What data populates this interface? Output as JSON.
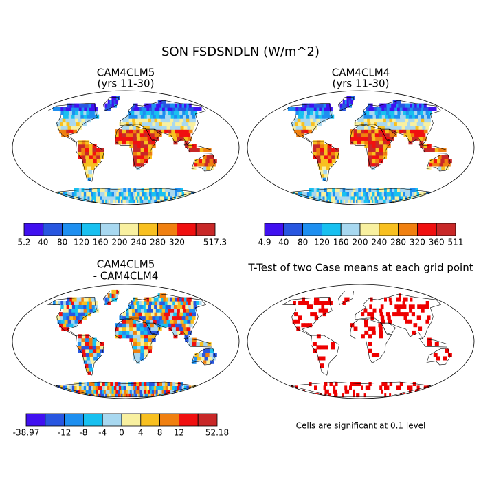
{
  "title": "SON FSDSNDLN (W/m^2)",
  "panels": [
    {
      "title": "CAM4CLM5",
      "subtitle": "(yrs 11-30)",
      "colorbar": {
        "colors": [
          "#4010f0",
          "#2856e0",
          "#1e8ff0",
          "#18c0f0",
          "#a8d8f0",
          "#f8f0a0",
          "#f8c020",
          "#f08010",
          "#f01010",
          "#c82828"
        ],
        "labels": [
          "5.2",
          "40",
          "80",
          "120",
          "160",
          "200",
          "240",
          "280",
          "320",
          null,
          "517.3"
        ]
      }
    },
    {
      "title": "CAM4CLM4",
      "subtitle": "(yrs 11-30)",
      "colorbar": {
        "colors": [
          "#4010f0",
          "#2856e0",
          "#1e8ff0",
          "#18c0f0",
          "#a8d8f0",
          "#f8f0a0",
          "#f8c020",
          "#f08010",
          "#f01010",
          "#c82828"
        ],
        "labels": [
          "4.9",
          "40",
          "80",
          "120",
          "160",
          "200",
          "240",
          "280",
          "320",
          "360",
          "511"
        ]
      }
    },
    {
      "title": "CAM4CLM5",
      "subtitle": "- CAM4CLM4",
      "colorbar": {
        "colors": [
          "#4010f0",
          "#2856e0",
          "#1e8ff0",
          "#18c0f0",
          "#a8d8f0",
          "#f8f0a0",
          "#f8c020",
          "#f08010",
          "#f01010",
          "#c82828"
        ],
        "labels": [
          "-38.97",
          null,
          "-12",
          "-8",
          "-4",
          "0",
          "4",
          "8",
          "12",
          null,
          "52.18"
        ]
      }
    },
    {
      "title": "T-Test of two Case means at each grid point",
      "note": "Cells are significant at 0.1 level",
      "color": "#ee0000"
    }
  ]
}
